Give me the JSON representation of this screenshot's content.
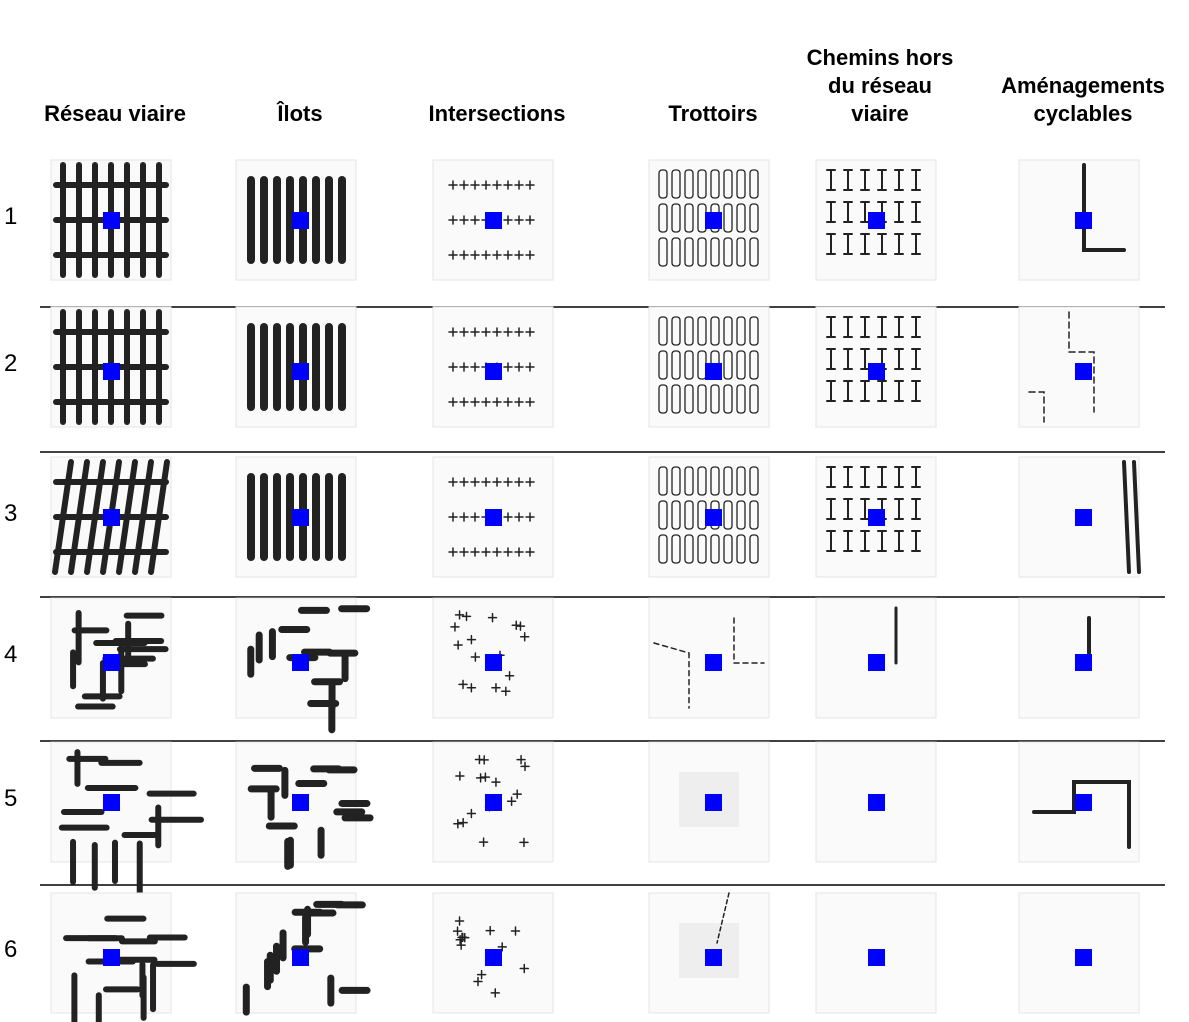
{
  "columns": [
    "Réseau viaire",
    "Îlots",
    "Intersections",
    "Trottoirs",
    "Chemins hors du réseau viaire",
    "Aménagements cyclables"
  ],
  "rows": [
    "1",
    "2",
    "3",
    "4",
    "5",
    "6"
  ]
}
